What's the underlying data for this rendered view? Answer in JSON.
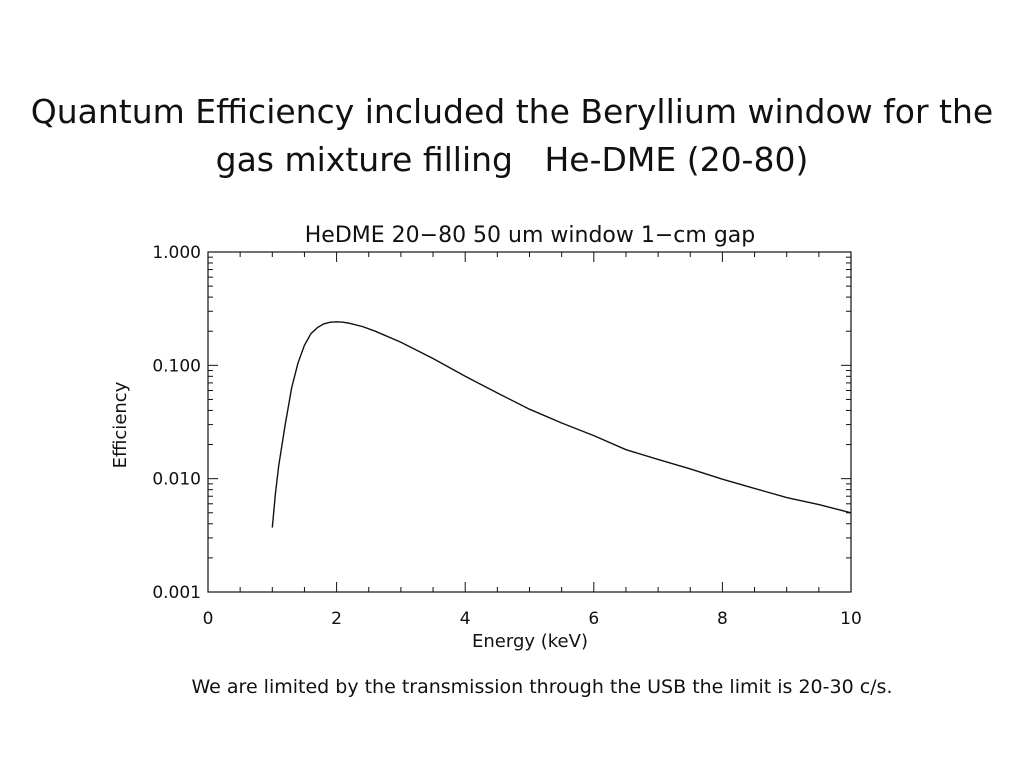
{
  "slide": {
    "title_line1": "Quantum Efficiency included the Beryllium window for the",
    "title_line2": "gas mixture filling   He-DME (20-80)",
    "footnote": "We are limited by the transmission through the USB the limit is 20-30 c/s."
  },
  "chart_data": {
    "type": "line",
    "title": "HeDME 20−80 50 um window 1−cm gap",
    "xlabel": "Energy (keV)",
    "ylabel": "Efficiency",
    "xlim": [
      0,
      10
    ],
    "ylim": [
      0.001,
      1.0
    ],
    "yscale": "log",
    "grid": false,
    "xticks": [
      0,
      2,
      4,
      6,
      8,
      10
    ],
    "xtick_labels": [
      "0",
      "2",
      "4",
      "6",
      "8",
      "10"
    ],
    "yticks": [
      0.001,
      0.01,
      0.1,
      1.0
    ],
    "ytick_labels": [
      "0.001",
      "0.010",
      "0.100",
      "1.000"
    ],
    "series": [
      {
        "x": [
          1.0,
          1.05,
          1.1,
          1.2,
          1.3,
          1.4,
          1.5,
          1.6,
          1.7,
          1.8,
          1.9,
          2.0,
          2.1,
          2.2,
          2.4,
          2.6,
          3.0,
          3.5,
          4.0,
          4.5,
          5.0,
          5.5,
          6.0,
          6.5,
          7.0,
          7.5,
          8.0,
          8.5,
          9.0,
          9.5,
          10.0
        ],
        "y": [
          0.0037,
          0.0075,
          0.013,
          0.03,
          0.063,
          0.105,
          0.15,
          0.19,
          0.215,
          0.232,
          0.24,
          0.242,
          0.24,
          0.235,
          0.22,
          0.2,
          0.16,
          0.115,
          0.08,
          0.057,
          0.041,
          0.031,
          0.024,
          0.018,
          0.0148,
          0.0122,
          0.0099,
          0.0082,
          0.0068,
          0.0059,
          0.005
        ]
      }
    ]
  }
}
